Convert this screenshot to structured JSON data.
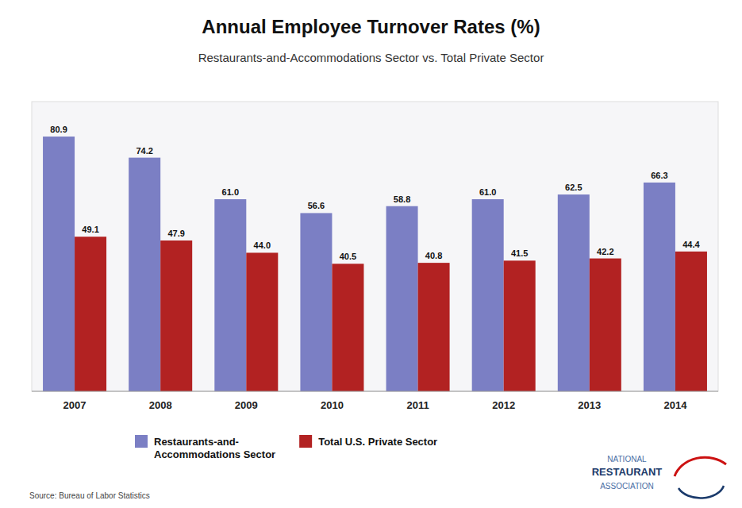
{
  "chart_data": {
    "type": "bar",
    "title": "Annual Employee Turnover Rates (%)",
    "subtitle": "Restaurants-and-Accommodations Sector vs. Total Private Sector",
    "categories": [
      "2007",
      "2008",
      "2009",
      "2010",
      "2011",
      "2012",
      "2013",
      "2014"
    ],
    "series": [
      {
        "name": "Restaurants-and-\nAccommodations Sector",
        "color": "#7B7FC4",
        "values": [
          80.9,
          74.2,
          61.0,
          56.6,
          58.8,
          61.0,
          62.5,
          66.3
        ],
        "value_labels": [
          "80.9",
          "74.2",
          "61.0",
          "56.6",
          "58.8",
          "61.0",
          "62.5",
          "66.3"
        ]
      },
      {
        "name": "Total U.S. Private Sector",
        "color": "#B22222",
        "values": [
          49.1,
          47.9,
          44.0,
          40.5,
          40.8,
          41.5,
          42.2,
          44.4
        ],
        "value_labels": [
          "49.1",
          "47.9",
          "44.0",
          "40.5",
          "40.8",
          "41.5",
          "42.2",
          "44.4"
        ]
      }
    ],
    "ylim": [
      0,
      92
    ],
    "tick_labels": "x",
    "data_labels": true,
    "grid": false,
    "legend": "bottom",
    "annotations": [
      "Source: Bureau of Labor Statistics",
      "NATIONAL",
      "RESTAURANT",
      "ASSOCIATION"
    ]
  }
}
